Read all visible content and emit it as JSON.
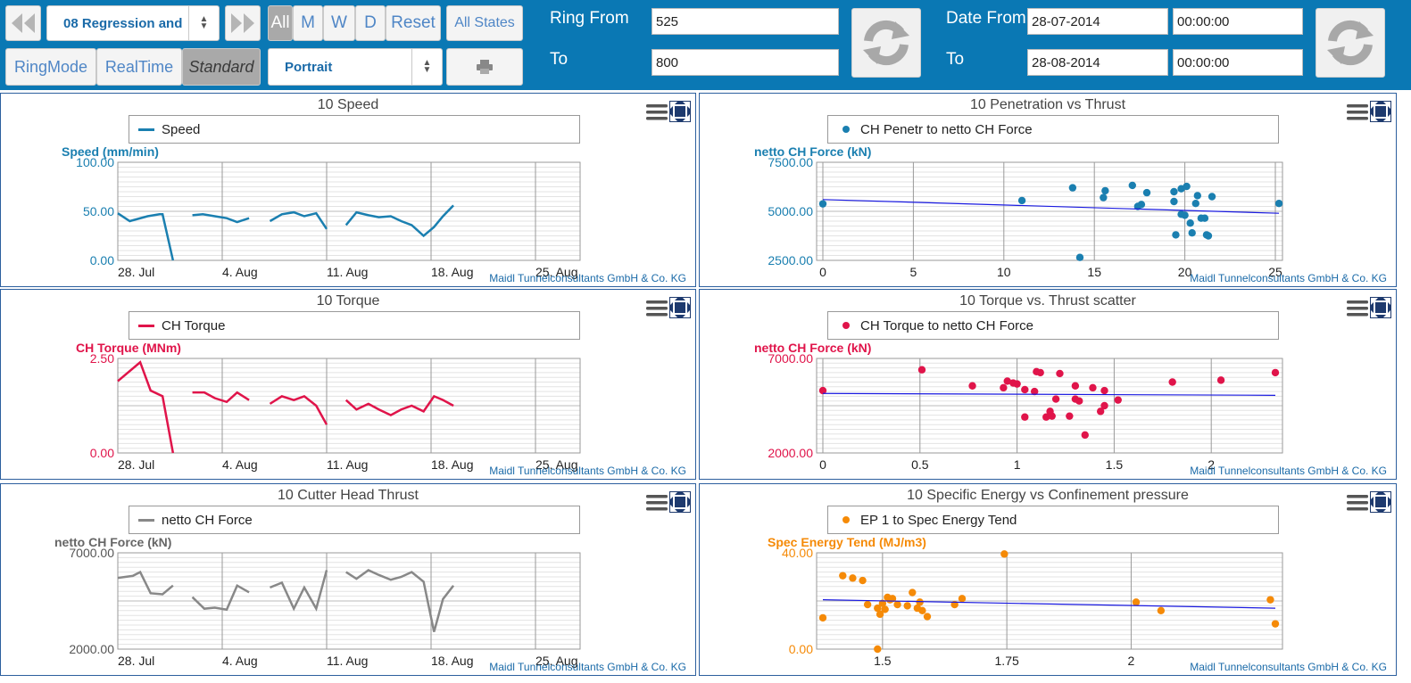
{
  "toolbar": {
    "dataset_select": "08 Regression and",
    "range_buttons": [
      "All",
      "M",
      "W",
      "D",
      "Reset"
    ],
    "all_states": "All States",
    "mode_buttons": [
      "RingMode",
      "RealTime",
      "Standard"
    ],
    "orientation_select": "Portrait",
    "ring_from_label": "Ring From",
    "ring_to_label": "To",
    "ring_from": "525",
    "ring_to": "800",
    "date_from_label": "Date From",
    "date_to_label": "To",
    "date_from": "28-07-2014",
    "time_from": "00:00:00",
    "date_to": "28-08-2014",
    "time_to": "00:00:00",
    "colors": {
      "bar": "#0a78b4",
      "selected": "#a9a9a9"
    }
  },
  "credit": "Maidl Tunnelconsultants GmbH & Co. KG",
  "charts": [
    {
      "id": "speed",
      "title": "10 Speed",
      "legend": "Speed",
      "ylabel": "Speed (mm/min)",
      "color": "#1a7fb0",
      "type": "line",
      "yticks": [
        "100.00",
        "50.00",
        "0.00"
      ],
      "ylim": [
        0,
        100
      ],
      "xticks": [
        "28. Jul",
        "4. Aug",
        "11. Aug",
        "18. Aug",
        "25. Aug"
      ],
      "chart_data": {
        "type": "line",
        "x_unit": "day",
        "xlim": [
          0,
          22.5
        ],
        "segments": [
          [
            [
              0,
              48
            ],
            [
              0.8,
              40
            ],
            [
              2,
              45
            ],
            [
              2.8,
              47
            ],
            [
              3,
              47
            ],
            [
              3.7,
              0
            ]
          ],
          [
            [
              5,
              46
            ],
            [
              5.7,
              47
            ],
            [
              6.5,
              45
            ],
            [
              7.3,
              43
            ],
            [
              8,
              39
            ],
            [
              8.8,
              43
            ]
          ],
          [
            [
              10.2,
              40
            ],
            [
              11,
              47
            ],
            [
              11.8,
              49
            ],
            [
              12.5,
              45
            ],
            [
              13.3,
              48
            ],
            [
              14,
              32
            ]
          ],
          [
            [
              15.3,
              36
            ],
            [
              16,
              49
            ],
            [
              16.8,
              46
            ],
            [
              17.5,
              44
            ],
            [
              18.3,
              45
            ],
            [
              19,
              40
            ],
            [
              19.7,
              36
            ],
            [
              20.5,
              25
            ],
            [
              21.2,
              34
            ],
            [
              21.8,
              45
            ],
            [
              22.5,
              56
            ]
          ]
        ]
      }
    },
    {
      "id": "penetration",
      "title": "10 Penetration vs Thrust",
      "legend": "CH Penetr to netto CH Force",
      "ylabel": "netto CH Force (kN)",
      "color": "#1a7fb0",
      "type": "scatter",
      "yticks": [
        "7500.00",
        "5000.00",
        "2500.00"
      ],
      "ylim": [
        2500,
        7500
      ],
      "xticks": [
        "0",
        "5",
        "10",
        "15",
        "20",
        "25"
      ],
      "chart_data": {
        "type": "scatter",
        "xlim": [
          0,
          25
        ],
        "points": [
          [
            0,
            5380
          ],
          [
            11,
            5550
          ],
          [
            13.8,
            6200
          ],
          [
            14.2,
            2650
          ],
          [
            15.5,
            5700
          ],
          [
            15.6,
            6050
          ],
          [
            17.1,
            6320
          ],
          [
            17.4,
            5250
          ],
          [
            17.6,
            5350
          ],
          [
            17.9,
            5950
          ],
          [
            19.4,
            6000
          ],
          [
            19.4,
            5500
          ],
          [
            19.5,
            3800
          ],
          [
            19.8,
            4850
          ],
          [
            19.8,
            6150
          ],
          [
            20,
            4800
          ],
          [
            20.1,
            6270
          ],
          [
            20.3,
            4400
          ],
          [
            20.4,
            3900
          ],
          [
            20.6,
            5400
          ],
          [
            20.7,
            5800
          ],
          [
            20.9,
            4650
          ],
          [
            21.1,
            4650
          ],
          [
            21.2,
            3800
          ],
          [
            21.3,
            3750
          ],
          [
            21.5,
            5750
          ],
          [
            25.2,
            5400
          ]
        ],
        "trend": [
          [
            0,
            5600
          ],
          [
            25.2,
            4900
          ]
        ]
      }
    },
    {
      "id": "torque",
      "title": "10 Torque",
      "legend": "CH Torque",
      "ylabel": "CH Torque (MNm)",
      "color": "#e0144a",
      "type": "line",
      "yticks": [
        "2.50",
        "0.00"
      ],
      "ylim": [
        0,
        2.5
      ],
      "xticks": [
        "28. Jul",
        "4. Aug",
        "11. Aug",
        "18. Aug",
        "25. Aug"
      ],
      "chart_data": {
        "type": "line",
        "x_unit": "day",
        "xlim": [
          0,
          22.5
        ],
        "segments": [
          [
            [
              0,
              1.9
            ],
            [
              1.5,
              2.4
            ],
            [
              2.2,
              1.65
            ],
            [
              3,
              1.5
            ],
            [
              3.7,
              0
            ]
          ],
          [
            [
              5,
              1.6
            ],
            [
              5.8,
              1.6
            ],
            [
              6.5,
              1.45
            ],
            [
              7.3,
              1.35
            ],
            [
              8,
              1.6
            ],
            [
              8.8,
              1.4
            ]
          ],
          [
            [
              10.2,
              1.3
            ],
            [
              11,
              1.5
            ],
            [
              11.8,
              1.4
            ],
            [
              12.5,
              1.5
            ],
            [
              13.3,
              1.25
            ],
            [
              14,
              0.75
            ]
          ],
          [
            [
              15.3,
              1.4
            ],
            [
              16,
              1.15
            ],
            [
              16.8,
              1.3
            ],
            [
              17.5,
              1.15
            ],
            [
              18.3,
              1.0
            ],
            [
              19,
              1.15
            ],
            [
              19.7,
              1.25
            ],
            [
              20.5,
              1.1
            ],
            [
              21.2,
              1.5
            ],
            [
              21.8,
              1.4
            ],
            [
              22.5,
              1.25
            ]
          ]
        ]
      }
    },
    {
      "id": "torque_thrust",
      "title": "10 Torque vs. Thrust scatter",
      "legend": "CH Torque to netto CH Force",
      "ylabel": "netto CH Force (kN)",
      "color": "#e0144a",
      "type": "scatter",
      "yticks": [
        "7000.00",
        "2000.00"
      ],
      "ylim": [
        2000,
        7000
      ],
      "xticks": [
        "0",
        "0.5",
        "1",
        "1.5",
        "2"
      ],
      "chart_data": {
        "type": "scatter",
        "xlim": [
          0,
          2.33
        ],
        "points": [
          [
            0,
            5300
          ],
          [
            0.51,
            6400
          ],
          [
            0.77,
            5550
          ],
          [
            0.93,
            5450
          ],
          [
            0.95,
            5800
          ],
          [
            0.98,
            5700
          ],
          [
            1.0,
            5650
          ],
          [
            1.04,
            3900
          ],
          [
            1.04,
            5350
          ],
          [
            1.09,
            5250
          ],
          [
            1.1,
            6300
          ],
          [
            1.12,
            6250
          ],
          [
            1.15,
            3900
          ],
          [
            1.17,
            4200
          ],
          [
            1.18,
            3950
          ],
          [
            1.2,
            4850
          ],
          [
            1.22,
            6200
          ],
          [
            1.27,
            3950
          ],
          [
            1.3,
            4850
          ],
          [
            1.3,
            5550
          ],
          [
            1.32,
            4750
          ],
          [
            1.35,
            2950
          ],
          [
            1.39,
            5450
          ],
          [
            1.43,
            4200
          ],
          [
            1.45,
            4500
          ],
          [
            1.45,
            5300
          ],
          [
            1.52,
            4800
          ],
          [
            1.8,
            5750
          ],
          [
            2.05,
            5850
          ],
          [
            2.33,
            6250
          ]
        ],
        "trend": [
          [
            0,
            5150
          ],
          [
            2.33,
            5050
          ]
        ]
      }
    },
    {
      "id": "thrust",
      "title": "10 Cutter Head Thrust",
      "legend": "netto CH Force",
      "ylabel": "netto CH Force (kN)",
      "color": "#888888",
      "type": "line",
      "yticks": [
        "7000.00",
        "2000.00"
      ],
      "ylim": [
        2000,
        7000
      ],
      "xticks": [
        "28. Jul",
        "4. Aug",
        "11. Aug",
        "18. Aug",
        "25. Aug"
      ],
      "chart_data": {
        "type": "line",
        "x_unit": "day",
        "xlim": [
          0,
          22.5
        ],
        "segments": [
          [
            [
              0,
              5700
            ],
            [
              1,
              5800
            ],
            [
              1.5,
              6000
            ],
            [
              2.2,
              4900
            ],
            [
              3,
              4850
            ],
            [
              3.7,
              5300
            ]
          ],
          [
            [
              5,
              4700
            ],
            [
              5.8,
              4100
            ],
            [
              6.5,
              4150
            ],
            [
              7.3,
              4050
            ],
            [
              8,
              5300
            ],
            [
              8.8,
              4950
            ]
          ],
          [
            [
              10.2,
              5200
            ],
            [
              11,
              5450
            ],
            [
              11.8,
              4100
            ],
            [
              12.5,
              5200
            ],
            [
              13.3,
              4100
            ],
            [
              14,
              6100
            ]
          ],
          [
            [
              15.3,
              6000
            ],
            [
              16,
              5650
            ],
            [
              16.8,
              6100
            ],
            [
              17.5,
              5850
            ],
            [
              18.3,
              5600
            ],
            [
              19,
              5750
            ],
            [
              19.7,
              6000
            ],
            [
              20.5,
              5500
            ],
            [
              21.2,
              2900
            ],
            [
              21.8,
              4600
            ],
            [
              22.5,
              5300
            ]
          ]
        ]
      }
    },
    {
      "id": "energy",
      "title": "10 Specific Energy vs Confinement pressure",
      "legend": "EP 1 to Spec Energy Tend",
      "ylabel": "Spec Energy Tend (MJ/m3)",
      "color": "#f58a07",
      "type": "scatter",
      "yticks": [
        "40.00",
        "0.00"
      ],
      "ylim": [
        0,
        40
      ],
      "xticks": [
        "1.5",
        "1.75",
        "2"
      ],
      "chart_data": {
        "type": "scatter",
        "xlim": [
          1.38,
          2.29
        ],
        "points": [
          [
            1.38,
            13
          ],
          [
            1.42,
            30.5
          ],
          [
            1.44,
            29.5
          ],
          [
            1.46,
            28.5
          ],
          [
            1.47,
            18.5
          ],
          [
            1.49,
            0
          ],
          [
            1.49,
            17
          ],
          [
            1.495,
            14.5
          ],
          [
            1.5,
            19
          ],
          [
            1.505,
            16.5
          ],
          [
            1.51,
            21.5
          ],
          [
            1.515,
            20.5
          ],
          [
            1.52,
            21
          ],
          [
            1.53,
            18.5
          ],
          [
            1.55,
            18
          ],
          [
            1.56,
            23.5
          ],
          [
            1.57,
            17
          ],
          [
            1.575,
            19.5
          ],
          [
            1.58,
            16
          ],
          [
            1.59,
            13.5
          ],
          [
            1.645,
            18.5
          ],
          [
            1.66,
            21
          ],
          [
            1.745,
            39.5
          ],
          [
            2.01,
            19.5
          ],
          [
            2.06,
            16
          ],
          [
            2.28,
            20.5
          ],
          [
            2.29,
            10.5
          ]
        ],
        "trend": [
          [
            1.38,
            20.5
          ],
          [
            2.29,
            17
          ]
        ]
      }
    }
  ]
}
